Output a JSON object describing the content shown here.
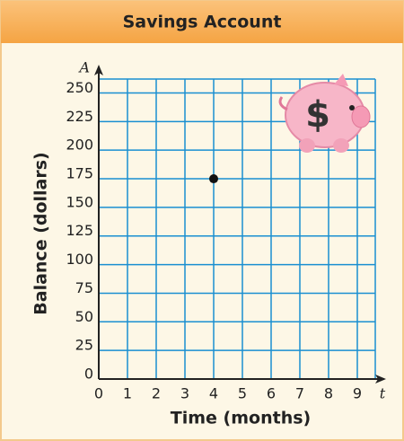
{
  "chart_data": {
    "type": "scatter",
    "title": "Savings Account",
    "xlabel": "Time (months)",
    "ylabel": "Balance (dollars)",
    "x_symbol": "t",
    "y_symbol": "A",
    "x": [
      4
    ],
    "values": [
      175
    ],
    "color": "#111111",
    "xlim": [
      0,
      10
    ],
    "ylim": [
      0,
      270
    ],
    "xticks": [
      0,
      1,
      2,
      3,
      4,
      5,
      6,
      7,
      8,
      9
    ],
    "yticks": [
      0,
      25,
      50,
      75,
      100,
      125,
      150,
      175,
      200,
      225,
      250
    ],
    "grid": true,
    "grid_color": "#1a8fd1"
  }
}
